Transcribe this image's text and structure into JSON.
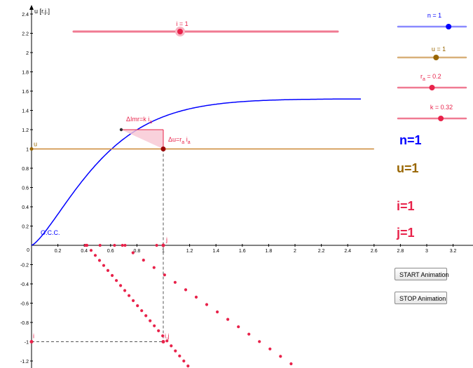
{
  "axes": {
    "y_label": "u [r.j.]",
    "x_ticks": [
      "0.2",
      "0.4",
      "0.6",
      "0.8",
      "1",
      "1.2",
      "1.4",
      "1.6",
      "1.8",
      "2",
      "2.2",
      "2.4",
      "2.6",
      "2.8",
      "3",
      "3.2"
    ],
    "y_ticks_pos": [
      "0.2",
      "0.4",
      "0.6",
      "0.8",
      "1",
      "1.2",
      "1.4",
      "1.6",
      "1.8",
      "2",
      "2.2",
      "2.4"
    ],
    "y_ticks_neg": [
      "-0.2",
      "-0.4",
      "-0.6",
      "-0.8",
      "-1",
      "-1.2"
    ],
    "origin": "0"
  },
  "labels": {
    "occ": "O.C.C.",
    "u_point": "u",
    "j_point": "j",
    "i_point": "i",
    "ij_point": "i,j",
    "delta_imr": "ΔImr=k i",
    "delta_imr_sub": "a",
    "delta_u": "Δu=r i",
    "delta_u_sub1": "a",
    "delta_u_sub2": "a"
  },
  "sliders": {
    "i": {
      "label": "i = 1",
      "value": 1,
      "color": "#e8224a"
    },
    "n": {
      "label": "n = 1",
      "value": 1,
      "color": "#0000ff"
    },
    "u": {
      "label": "u = 1",
      "value": 1,
      "color": "#996600"
    },
    "ra": {
      "label_prefix": "r",
      "label_sub": "a",
      "label_suffix": " = 0.2",
      "value": 0.2,
      "color": "#e8224a"
    },
    "k": {
      "label": "k = 0.32",
      "value": 0.32,
      "color": "#e8224a"
    }
  },
  "big_labels": {
    "n": "n=1",
    "u": "u=1",
    "i": "i=1",
    "j": "j=1"
  },
  "buttons": {
    "start": "START Animation",
    "stop": "STOP  Animation"
  },
  "colors": {
    "blue": "#0000ff",
    "orange": "#996600",
    "red": "#e8224a",
    "dark_red": "#990000"
  }
}
